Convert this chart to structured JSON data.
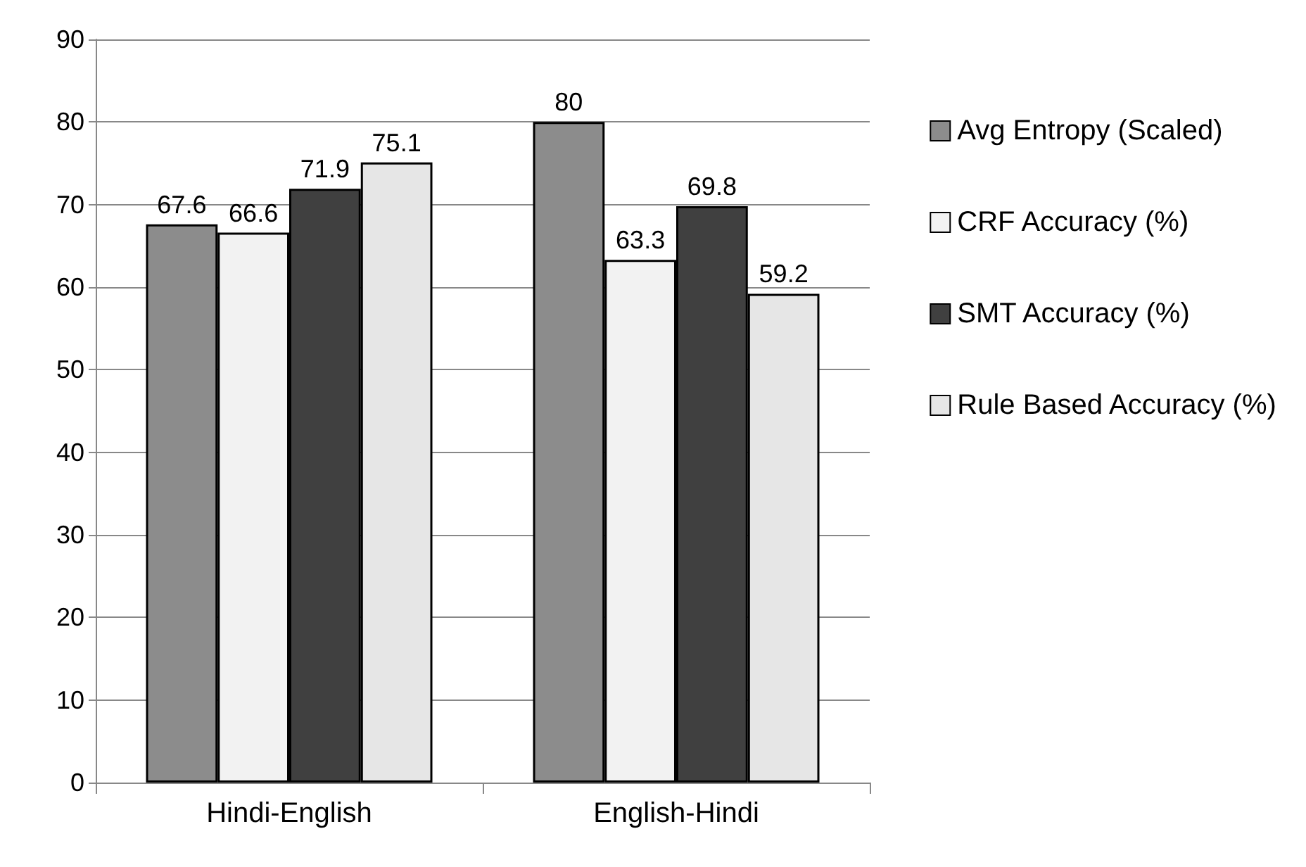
{
  "chart_data": {
    "type": "bar",
    "categories": [
      "Hindi-English",
      "English-Hindi"
    ],
    "series": [
      {
        "name": "Avg Entropy (Scaled)",
        "color": "#8c8c8c",
        "values": [
          67.6,
          80
        ]
      },
      {
        "name": "CRF Accuracy (%)",
        "color": "#f2f2f2",
        "values": [
          66.6,
          63.3
        ]
      },
      {
        "name": "SMT Accuracy (%)",
        "color": "#404040",
        "values": [
          71.9,
          69.8
        ]
      },
      {
        "name": "Rule Based Accuracy (%)",
        "color": "#e6e6e6",
        "values": [
          75.1,
          59.2
        ]
      }
    ],
    "ylim": [
      0,
      90
    ],
    "yticks": [
      0,
      10,
      20,
      30,
      40,
      50,
      60,
      70,
      80,
      90
    ],
    "grid": "y",
    "legend": "right",
    "data_labels": true
  }
}
